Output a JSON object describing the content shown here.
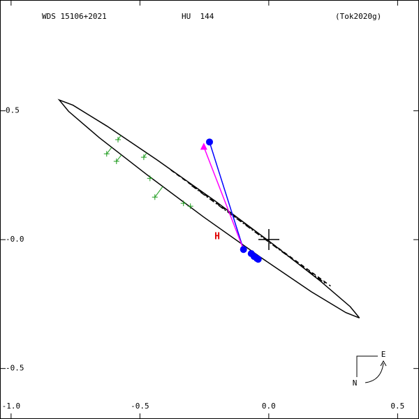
{
  "header": {
    "wds": "WDS 15106+2021",
    "name": "HU  144",
    "reference": "(Tok2020g)"
  },
  "annotation": "H",
  "compass": {
    "east": "E",
    "north": "N"
  },
  "chart_data": {
    "type": "scatter",
    "xlim": [
      -1.043,
      0.583
    ],
    "ylim": [
      -0.696,
      0.93
    ],
    "xticks": [
      {
        "value": -1,
        "label": "-1.0"
      },
      {
        "value": -0.5,
        "label": "-0.5"
      },
      {
        "value": 0,
        "label": "0.0"
      },
      0.5
    ],
    "yticks": [
      0.5,
      {
        "value": 0,
        "label": "-0.0"
      },
      -0.5
    ],
    "series": [
      {
        "mark": "line",
        "color": "#000000",
        "x": [
          0.352,
          0.316,
          0.197,
          0.013,
          -0.208,
          -0.433,
          -0.627,
          -0.76,
          -0.813,
          -0.777,
          -0.658,
          -0.474,
          -0.253,
          -0.028,
          0.165,
          0.299,
          0.352
        ],
        "y": [
          -0.304,
          -0.26,
          -0.158,
          -0.015,
          0.15,
          0.309,
          0.44,
          0.522,
          0.542,
          0.498,
          0.396,
          0.253,
          0.088,
          -0.071,
          -0.202,
          -0.283,
          -0.304
        ]
      },
      {
        "mark": "dash",
        "color": "#000000",
        "x": [
          -0.38,
          0.24
        ],
        "y": [
          0.27,
          -0.18
        ]
      },
      {
        "mark": "dashdot",
        "color": "#000000",
        "x": [
          -0.3,
          0.22
        ],
        "y": [
          0.21,
          -0.17
        ]
      },
      {
        "mark": "plus",
        "color": "#1a9a1a",
        "x": [
          -0.629,
          -0.585,
          -0.591,
          -0.485,
          -0.461,
          -0.442,
          -0.331,
          -0.304
        ],
        "y": [
          0.333,
          0.388,
          0.304,
          0.32,
          0.238,
          0.165,
          0.141,
          0.13
        ]
      },
      {
        "mark": "line",
        "color": "#0000ff",
        "x": [
          -0.23,
          -0.098
        ],
        "y": [
          0.379,
          -0.038
        ]
      },
      {
        "mark": "line",
        "color": "#ff00ff",
        "x": [
          -0.252,
          -0.098
        ],
        "y": [
          0.36,
          -0.038
        ]
      },
      {
        "mark": "triangle",
        "color": "#ff00ff",
        "x": [
          -0.252
        ],
        "y": [
          0.36
        ]
      },
      {
        "mark": "dot",
        "color": "#0000ff",
        "x": [
          -0.23,
          -0.098,
          -0.068,
          -0.057,
          -0.046,
          -0.041
        ],
        "y": [
          0.379,
          -0.038,
          -0.054,
          -0.065,
          -0.073,
          -0.076
        ]
      }
    ]
  }
}
